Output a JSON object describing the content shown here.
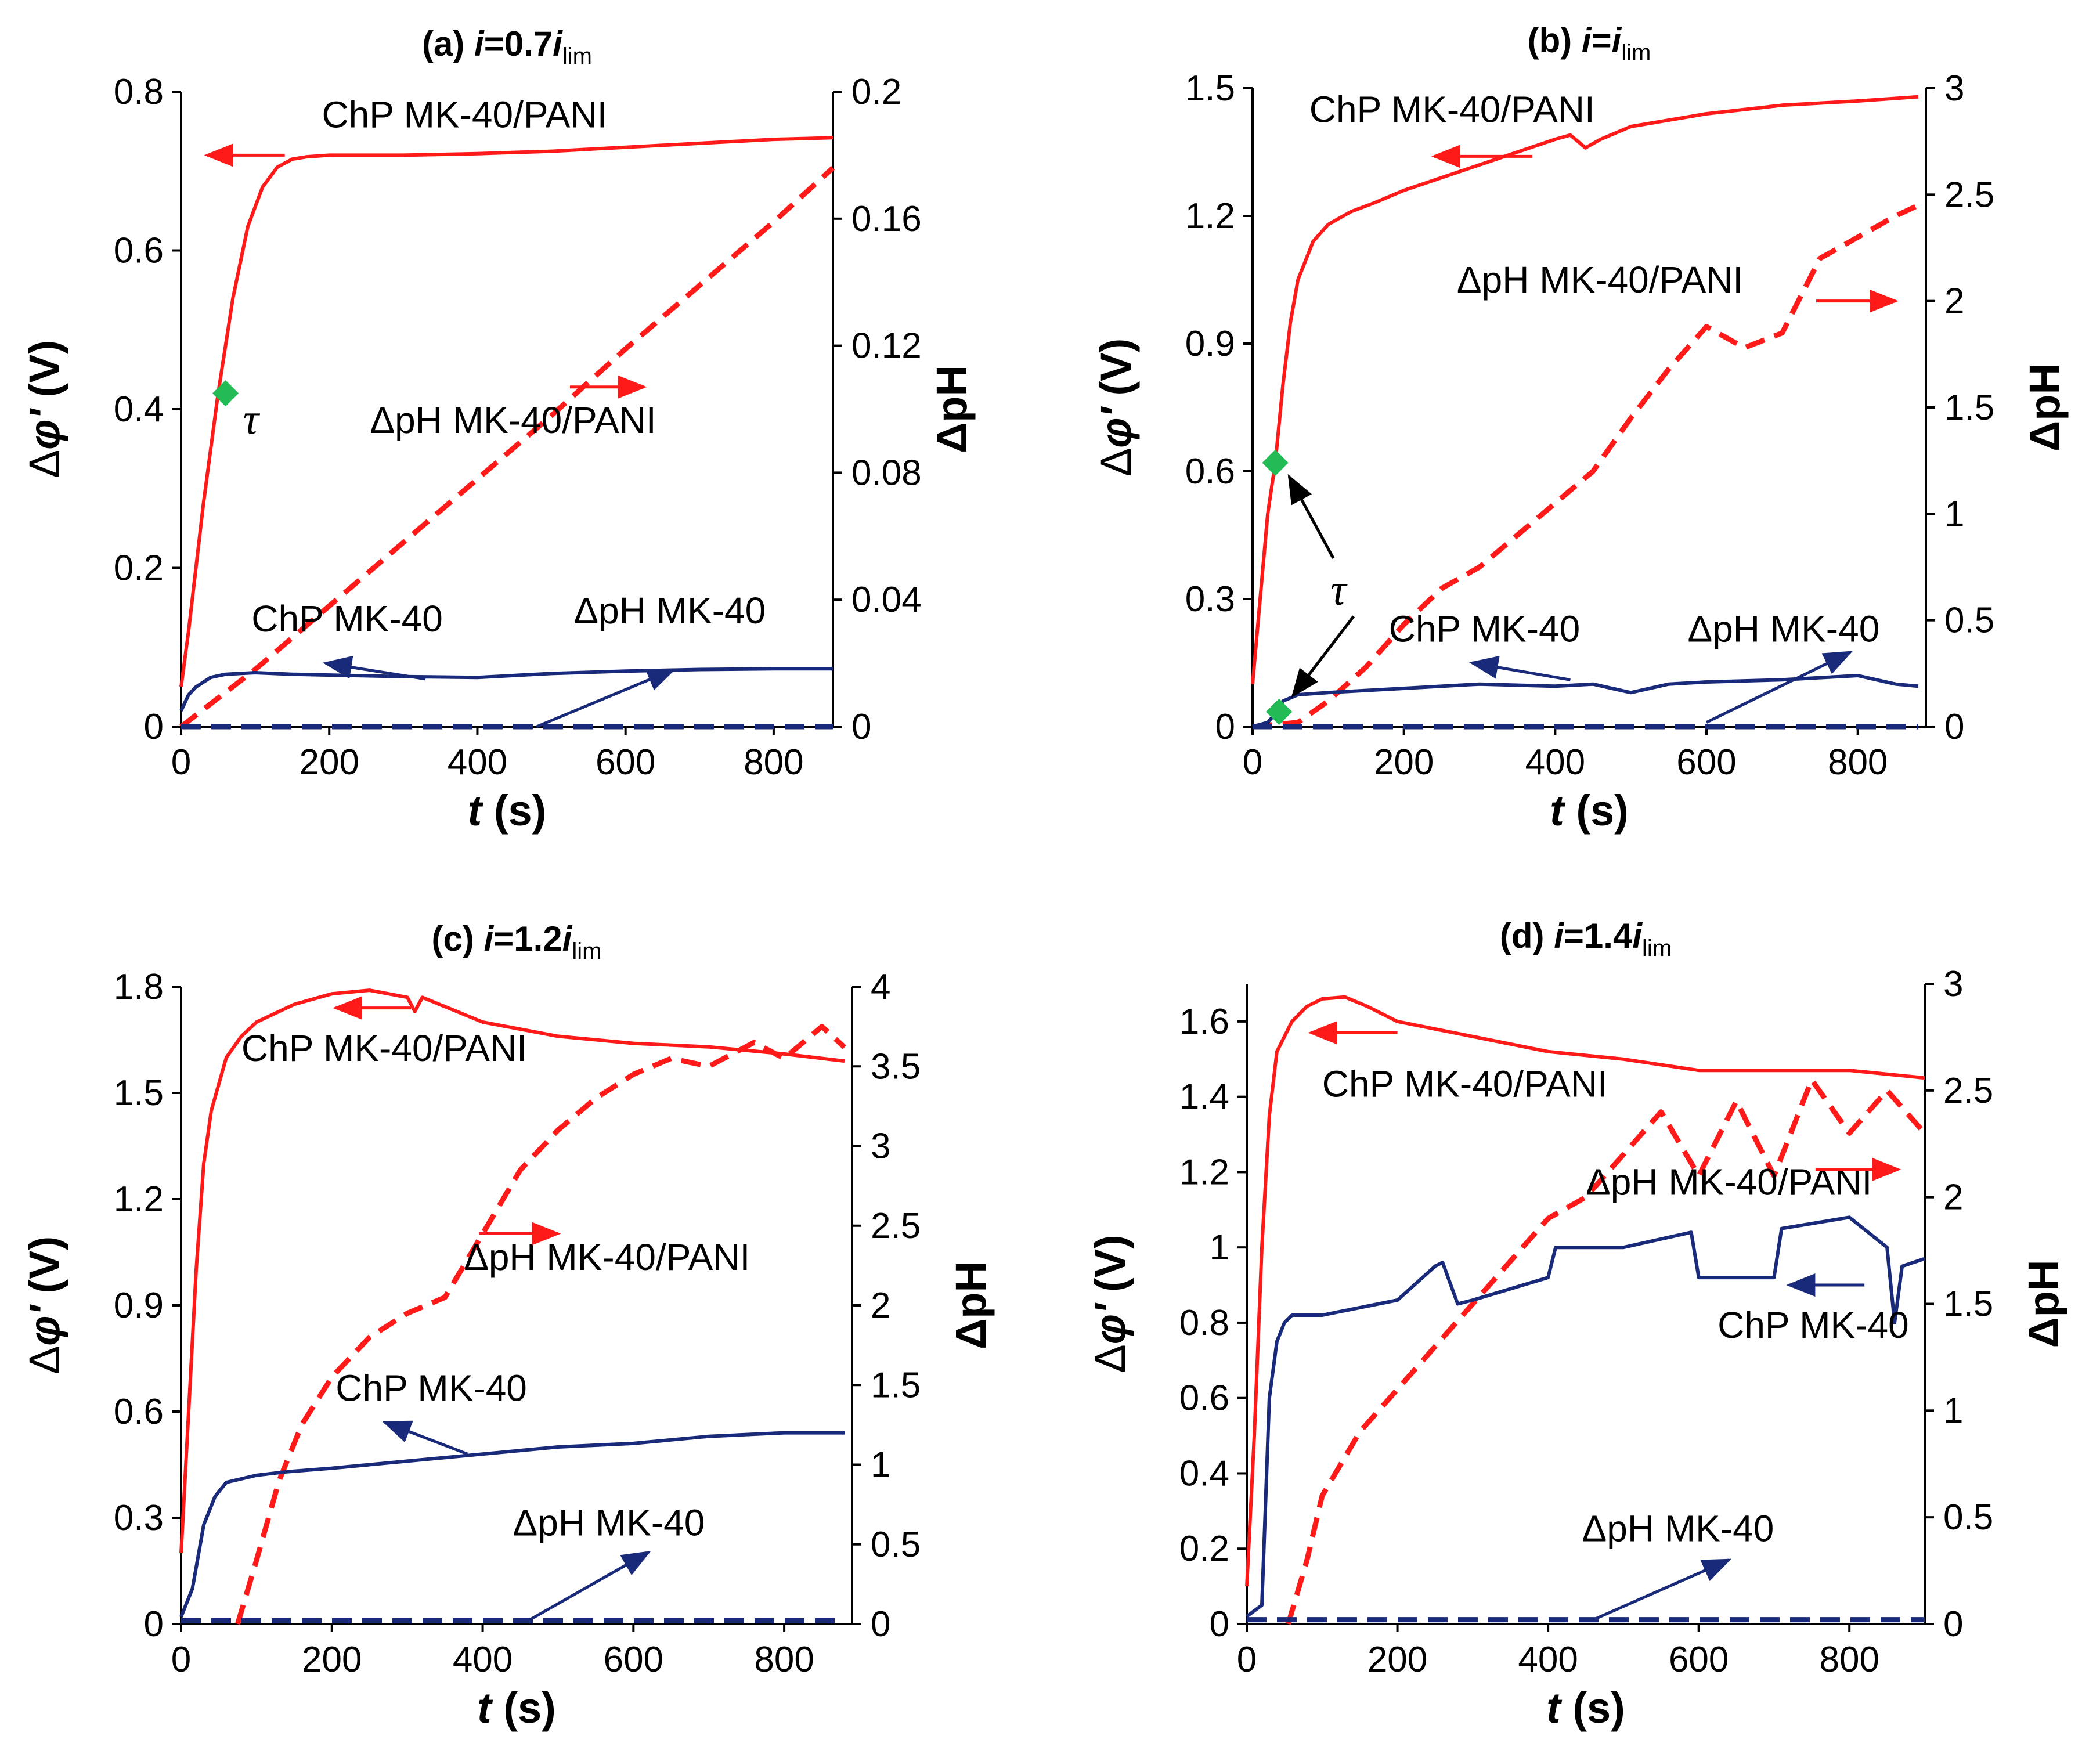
{
  "colors": {
    "pani": "#ff1a1a",
    "mk40": "#1a2a7a",
    "tau_marker": "#22bb55",
    "axis": "#000000"
  },
  "axis_text": {
    "xlabel_var": "t",
    "xlabel_unit": " (s)",
    "ylabel_delta": "Δ",
    "ylabel_var": "φ'",
    "ylabel_unit": " (V)",
    "y2label": "ΔpH",
    "tau": "τ"
  },
  "chart_data": [
    {
      "id": "a",
      "type": "line",
      "title": {
        "prefix": "(a) ",
        "var": "i",
        "mid": "=0.7",
        "var2": "i",
        "sub": "lim"
      },
      "xlabel": "t (s)",
      "ylabel": "Δφ' (V)",
      "y2label": "ΔpH",
      "xlim": [
        0,
        880
      ],
      "ylim": [
        0,
        0.8
      ],
      "y2lim": [
        0,
        0.2
      ],
      "xticks": [
        "0",
        "200",
        "400",
        "600",
        "800"
      ],
      "yticks": [
        "0",
        "0.2",
        "0.4",
        "0.6",
        "0.8"
      ],
      "y2ticks": [
        "0",
        "0.04",
        "0.08",
        "0.12",
        "0.16",
        "0.2"
      ],
      "series": [
        {
          "name": "ChP MK-40/PANI",
          "axis": "left",
          "style": "solid",
          "color": "pani",
          "x": [
            0,
            10,
            30,
            50,
            70,
            90,
            110,
            130,
            150,
            170,
            200,
            250,
            300,
            400,
            500,
            600,
            700,
            800,
            880
          ],
          "y": [
            0.05,
            0.12,
            0.28,
            0.42,
            0.54,
            0.63,
            0.68,
            0.705,
            0.715,
            0.718,
            0.72,
            0.72,
            0.72,
            0.722,
            0.725,
            0.73,
            0.735,
            0.74,
            0.742
          ]
        },
        {
          "name": "ΔpH MK-40/PANI",
          "axis": "right",
          "style": "dashed",
          "color": "pani",
          "x": [
            0,
            100,
            200,
            300,
            400,
            500,
            600,
            700,
            800,
            880
          ],
          "y": [
            0,
            0.018,
            0.038,
            0.058,
            0.078,
            0.098,
            0.119,
            0.139,
            0.159,
            0.176
          ]
        },
        {
          "name": "ChP MK-40",
          "axis": "left",
          "style": "solid",
          "color": "mk40",
          "x": [
            0,
            10,
            20,
            40,
            60,
            100,
            150,
            200,
            300,
            400,
            500,
            600,
            700,
            800,
            880
          ],
          "y": [
            0.02,
            0.04,
            0.05,
            0.062,
            0.066,
            0.068,
            0.066,
            0.065,
            0.063,
            0.062,
            0.067,
            0.07,
            0.072,
            0.073,
            0.073
          ]
        },
        {
          "name": "ΔpH MK-40",
          "axis": "right",
          "style": "dashed",
          "color": "mk40",
          "x": [
            0,
            200,
            400,
            600,
            880
          ],
          "y": [
            0,
            0,
            0,
            0,
            0
          ]
        }
      ],
      "markers": [
        {
          "label": "τ",
          "x": 60,
          "y": 0.42
        }
      ],
      "annotations": [
        {
          "text": "ChP MK-40/PANI",
          "tx": 190,
          "ty": 0.755,
          "arrow_from": [
            140,
            0.72
          ],
          "arrow_to": [
            35,
            0.72
          ],
          "color": "pani"
        },
        {
          "text": "ΔpH MK-40/PANI",
          "tx": 255,
          "ty": 0.37,
          "arrow_from": [
            525,
            0.107
          ],
          "arrow_to": [
            625,
            0.107
          ],
          "color": "pani",
          "arrow_axis": "right"
        },
        {
          "text": "ChP MK-40",
          "tx": 95,
          "ty": 0.12,
          "arrow_from": [
            330,
            0.06
          ],
          "arrow_to": [
            195,
            0.08
          ],
          "color": "mk40"
        },
        {
          "text": "ΔpH MK-40",
          "tx": 530,
          "ty": 0.13,
          "arrow_from": [
            480,
            0
          ],
          "arrow_to": [
            665,
            0.018
          ],
          "color": "mk40",
          "arrow_axis": "right"
        }
      ]
    },
    {
      "id": "b",
      "type": "line",
      "title": {
        "prefix": "(b) ",
        "var": "i",
        "mid": "=",
        "var2": "i",
        "sub": "lim"
      },
      "xlabel": "t (s)",
      "ylabel": "Δφ' (V)",
      "y2label": "ΔpH",
      "xlim": [
        0,
        890
      ],
      "ylim": [
        0,
        1.5
      ],
      "y2lim": [
        0,
        3
      ],
      "xticks": [
        "0",
        "200",
        "400",
        "600",
        "800"
      ],
      "yticks": [
        "0",
        "0.3",
        "0.6",
        "0.9",
        "1.2",
        "1.5"
      ],
      "y2ticks": [
        "0",
        "0.5",
        "1",
        "1.5",
        "2",
        "2.5",
        "3"
      ],
      "series": [
        {
          "name": "ChP MK-40/PANI",
          "axis": "left",
          "style": "solid",
          "color": "pani",
          "x": [
            0,
            10,
            20,
            30,
            40,
            50,
            60,
            80,
            100,
            130,
            160,
            200,
            300,
            400,
            420,
            440,
            460,
            500,
            600,
            700,
            800,
            880
          ],
          "y": [
            0.1,
            0.3,
            0.5,
            0.62,
            0.8,
            0.95,
            1.05,
            1.14,
            1.18,
            1.21,
            1.23,
            1.26,
            1.32,
            1.38,
            1.39,
            1.36,
            1.38,
            1.41,
            1.44,
            1.46,
            1.47,
            1.48
          ]
        },
        {
          "name": "ΔpH MK-40/PANI",
          "axis": "right",
          "style": "dashed",
          "color": "pani",
          "x": [
            0,
            60,
            100,
            150,
            200,
            250,
            300,
            350,
            400,
            450,
            500,
            550,
            600,
            650,
            700,
            750,
            800,
            850,
            880
          ],
          "y": [
            0,
            0.02,
            0.12,
            0.28,
            0.48,
            0.65,
            0.75,
            0.9,
            1.05,
            1.2,
            1.45,
            1.68,
            1.88,
            1.78,
            1.85,
            2.2,
            2.3,
            2.4,
            2.45
          ]
        },
        {
          "name": "ChP MK-40",
          "axis": "left",
          "style": "solid",
          "color": "mk40",
          "x": [
            0,
            20,
            30,
            40,
            60,
            100,
            200,
            300,
            400,
            450,
            500,
            550,
            600,
            700,
            800,
            850,
            880
          ],
          "y": [
            0.0,
            0.01,
            0.03,
            0.06,
            0.075,
            0.08,
            0.09,
            0.1,
            0.095,
            0.1,
            0.08,
            0.1,
            0.105,
            0.11,
            0.12,
            0.1,
            0.095
          ]
        },
        {
          "name": "ΔpH MK-40",
          "axis": "right",
          "style": "dashed",
          "color": "mk40",
          "x": [
            0,
            200,
            400,
            600,
            880
          ],
          "y": [
            0,
            0,
            0,
            0,
            0
          ]
        }
      ],
      "markers": [
        {
          "label": "τ",
          "x": 30,
          "y": 0.62
        },
        {
          "label": "τ",
          "x": 35,
          "y": 0.035
        }
      ],
      "annotations": [
        {
          "text": "ChP MK-40/PANI",
          "tx": 75,
          "ty": 1.42,
          "arrow_from": [
            370,
            1.34
          ],
          "arrow_to": [
            240,
            1.34
          ],
          "color": "pani"
        },
        {
          "text": "ΔpH MK-40/PANI",
          "tx": 270,
          "ty": 1.02,
          "arrow_from": [
            745,
            2.0
          ],
          "arrow_to": [
            850,
            2.0
          ],
          "color": "pani",
          "arrow_axis": "right"
        },
        {
          "text": "ChP MK-40",
          "tx": 180,
          "ty": 0.2,
          "arrow_from": [
            420,
            0.11
          ],
          "arrow_to": [
            290,
            0.15
          ],
          "color": "mk40"
        },
        {
          "text": "ΔpH MK-40",
          "tx": 575,
          "ty": 0.2,
          "arrow_from": [
            600,
            0.02
          ],
          "arrow_to": [
            790,
            0.35
          ],
          "color": "mk40",
          "arrow_axis": "right"
        }
      ]
    },
    {
      "id": "c",
      "type": "line",
      "title": {
        "prefix": "(c) ",
        "var": "i",
        "mid": "=1.2",
        "var2": "i",
        "sub": "lim"
      },
      "xlabel": "t (s)",
      "ylabel": "Δφ' (V)",
      "y2label": "ΔpH",
      "xlim": [
        0,
        890
      ],
      "ylim": [
        0,
        1.8
      ],
      "y2lim": [
        0,
        4
      ],
      "xticks": [
        "0",
        "200",
        "400",
        "600",
        "800"
      ],
      "yticks": [
        "0",
        "0.3",
        "0.6",
        "0.9",
        "1.2",
        "1.5",
        "1.8"
      ],
      "y2ticks": [
        "0",
        "0.5",
        "1",
        "1.5",
        "2",
        "2.5",
        "3",
        "3.5",
        "4"
      ],
      "series": [
        {
          "name": "ChP MK-40/PANI",
          "axis": "left",
          "style": "solid",
          "color": "pani",
          "x": [
            0,
            10,
            20,
            30,
            40,
            60,
            80,
            100,
            150,
            200,
            250,
            300,
            310,
            320,
            400,
            500,
            600,
            700,
            800,
            880
          ],
          "y": [
            0.2,
            0.6,
            1.0,
            1.3,
            1.45,
            1.6,
            1.66,
            1.7,
            1.75,
            1.78,
            1.79,
            1.77,
            1.73,
            1.77,
            1.7,
            1.66,
            1.64,
            1.63,
            1.61,
            1.59
          ]
        },
        {
          "name": "ΔpH MK-40/PANI",
          "axis": "right",
          "style": "dashed",
          "color": "pani",
          "x": [
            75,
            100,
            130,
            160,
            200,
            250,
            300,
            350,
            400,
            450,
            500,
            550,
            600,
            650,
            700,
            760,
            800,
            850,
            880
          ],
          "y": [
            0,
            0.4,
            0.9,
            1.25,
            1.55,
            1.8,
            1.95,
            2.05,
            2.45,
            2.85,
            3.1,
            3.3,
            3.45,
            3.55,
            3.5,
            3.65,
            3.55,
            3.75,
            3.62
          ]
        },
        {
          "name": "ChP MK-40",
          "axis": "left",
          "style": "solid",
          "color": "mk40",
          "x": [
            0,
            15,
            30,
            45,
            60,
            100,
            140,
            200,
            300,
            400,
            500,
            600,
            700,
            800,
            880
          ],
          "y": [
            0.02,
            0.1,
            0.28,
            0.36,
            0.4,
            0.42,
            0.43,
            0.44,
            0.46,
            0.48,
            0.5,
            0.51,
            0.53,
            0.54,
            0.54
          ]
        },
        {
          "name": "ΔpH MK-40",
          "axis": "right",
          "style": "dashed",
          "color": "mk40",
          "x": [
            0,
            200,
            400,
            600,
            880
          ],
          "y": [
            0.02,
            0.02,
            0.02,
            0.02,
            0.02
          ]
        }
      ],
      "markers": [],
      "annotations": [
        {
          "text": "ChP MK-40/PANI",
          "tx": 80,
          "ty": 1.59,
          "arrow_from": [
            305,
            1.74
          ],
          "arrow_to": [
            205,
            1.74
          ],
          "color": "pani"
        },
        {
          "text": "ΔpH MK-40/PANI",
          "tx": 375,
          "ty": 1.0,
          "arrow_from": [
            395,
            2.45
          ],
          "arrow_to": [
            500,
            2.45
          ],
          "color": "pani",
          "arrow_axis": "right"
        },
        {
          "text": "ChP MK-40",
          "tx": 205,
          "ty": 0.63,
          "arrow_from": [
            380,
            0.48
          ],
          "arrow_to": [
            270,
            0.57
          ],
          "color": "mk40"
        },
        {
          "text": "ΔpH MK-40",
          "tx": 440,
          "ty": 0.25,
          "arrow_from": [
            460,
            0.02
          ],
          "arrow_to": [
            620,
            0.45
          ],
          "color": "mk40",
          "arrow_axis": "right"
        }
      ]
    },
    {
      "id": "d",
      "type": "line",
      "title": {
        "prefix": "(d) ",
        "var": "i",
        "mid": "=1.4",
        "var2": "i",
        "sub": "lim"
      },
      "xlabel": "t (s)",
      "ylabel": "Δφ' (V)",
      "y2label": "ΔpH",
      "xlim": [
        0,
        900
      ],
      "ylim": [
        0,
        1.7
      ],
      "y2lim": [
        0,
        3
      ],
      "xticks": [
        "0",
        "200",
        "400",
        "600",
        "800"
      ],
      "yticks": [
        "0",
        "0.2",
        "0.4",
        "0.6",
        "0.8",
        "1",
        "1.2",
        "1.4",
        "1.6"
      ],
      "y2ticks": [
        "0",
        "0.5",
        "1",
        "1.5",
        "2",
        "2.5",
        "3"
      ],
      "series": [
        {
          "name": "ChP MK-40/PANI",
          "axis": "left",
          "style": "solid",
          "color": "pani",
          "x": [
            0,
            10,
            20,
            30,
            40,
            60,
            80,
            100,
            130,
            160,
            200,
            250,
            300,
            400,
            500,
            600,
            700,
            800,
            900
          ],
          "y": [
            0.1,
            0.5,
            1.0,
            1.35,
            1.52,
            1.6,
            1.64,
            1.66,
            1.665,
            1.64,
            1.6,
            1.58,
            1.56,
            1.52,
            1.5,
            1.47,
            1.47,
            1.47,
            1.45
          ]
        },
        {
          "name": "ΔpH MK-40/PANI",
          "axis": "right",
          "style": "dashed",
          "color": "pani",
          "x": [
            55,
            80,
            100,
            150,
            200,
            250,
            300,
            350,
            400,
            450,
            500,
            550,
            600,
            650,
            700,
            750,
            800,
            850,
            900
          ],
          "y": [
            0,
            0.3,
            0.6,
            0.9,
            1.1,
            1.3,
            1.5,
            1.7,
            1.9,
            2.0,
            2.2,
            2.4,
            2.1,
            2.45,
            2.1,
            2.55,
            2.3,
            2.5,
            2.3
          ]
        },
        {
          "name": "ChP MK-40",
          "axis": "left",
          "style": "solid",
          "color": "mk40",
          "x": [
            0,
            20,
            30,
            40,
            50,
            60,
            100,
            200,
            250,
            260,
            280,
            300,
            400,
            410,
            500,
            590,
            600,
            700,
            710,
            800,
            850,
            860,
            870,
            900
          ],
          "y": [
            0.02,
            0.05,
            0.6,
            0.75,
            0.8,
            0.82,
            0.82,
            0.86,
            0.95,
            0.96,
            0.85,
            0.86,
            0.92,
            1.0,
            1.0,
            1.04,
            0.92,
            0.92,
            1.05,
            1.08,
            1.0,
            0.8,
            0.95,
            0.97
          ]
        },
        {
          "name": "ΔpH MK-40",
          "axis": "right",
          "style": "dashed",
          "color": "mk40",
          "x": [
            0,
            200,
            400,
            600,
            900
          ],
          "y": [
            0.02,
            0.02,
            0.02,
            0.02,
            0.02
          ]
        }
      ],
      "markers": [],
      "annotations": [
        {
          "text": "ChP MK-40/PANI",
          "tx": 100,
          "ty": 1.4,
          "arrow_from": [
            200,
            1.57
          ],
          "arrow_to": [
            85,
            1.57
          ],
          "color": "pani"
        },
        {
          "text": "ΔpH MK-40/PANI",
          "tx": 450,
          "ty": 1.14,
          "arrow_from": [
            755,
            2.13
          ],
          "arrow_to": [
            865,
            2.13
          ],
          "color": "pani",
          "arrow_axis": "right"
        },
        {
          "text": "ChP MK-40",
          "tx": 625,
          "ty": 0.76,
          "arrow_from": [
            820,
            0.9
          ],
          "arrow_to": [
            720,
            0.9
          ],
          "color": "mk40"
        },
        {
          "text": "ΔpH MK-40",
          "tx": 445,
          "ty": 0.22,
          "arrow_from": [
            460,
            0.02
          ],
          "arrow_to": [
            640,
            0.3
          ],
          "color": "mk40",
          "arrow_axis": "right"
        }
      ]
    }
  ]
}
